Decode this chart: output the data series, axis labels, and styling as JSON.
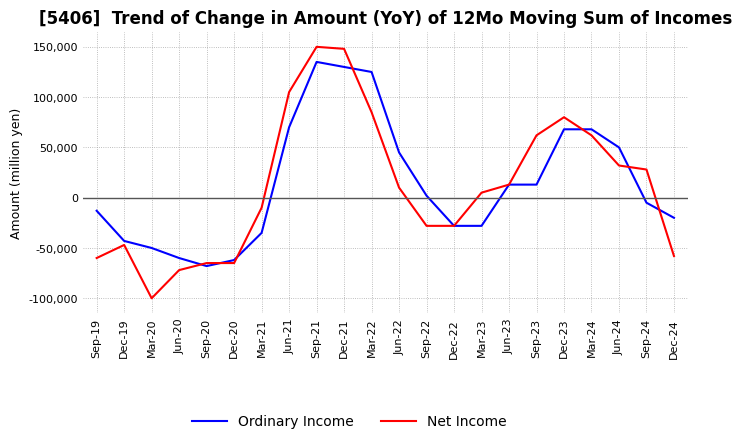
{
  "title": "[5406]  Trend of Change in Amount (YoY) of 12Mo Moving Sum of Incomes",
  "ylabel": "Amount (million yen)",
  "ylim": [
    -115000,
    165000
  ],
  "yticks": [
    -100000,
    -50000,
    0,
    50000,
    100000,
    150000
  ],
  "x_labels": [
    "Sep-19",
    "Dec-19",
    "Mar-20",
    "Jun-20",
    "Sep-20",
    "Dec-20",
    "Mar-21",
    "Jun-21",
    "Sep-21",
    "Dec-21",
    "Mar-22",
    "Jun-22",
    "Sep-22",
    "Dec-22",
    "Mar-23",
    "Jun-23",
    "Sep-23",
    "Dec-23",
    "Mar-24",
    "Jun-24",
    "Sep-24",
    "Dec-24"
  ],
  "ordinary_income": [
    -13000,
    -43000,
    -50000,
    -60000,
    -68000,
    -62000,
    -35000,
    70000,
    135000,
    130000,
    125000,
    45000,
    2000,
    -28000,
    -28000,
    13000,
    13000,
    68000,
    68000,
    50000,
    -5000,
    -20000
  ],
  "net_income": [
    -60000,
    -47000,
    -100000,
    -72000,
    -65000,
    -65000,
    -10000,
    105000,
    150000,
    148000,
    85000,
    10000,
    -28000,
    -28000,
    5000,
    13000,
    62000,
    80000,
    62000,
    32000,
    28000,
    -58000
  ],
  "ordinary_color": "#0000FF",
  "net_color": "#FF0000",
  "line_width": 1.5,
  "title_fontsize": 12,
  "legend_fontsize": 10,
  "tick_fontsize": 8,
  "ylabel_fontsize": 9,
  "background_color": "#FFFFFF",
  "grid_color": "#aaaaaa",
  "grid_style": ":",
  "grid_linewidth": 0.6
}
